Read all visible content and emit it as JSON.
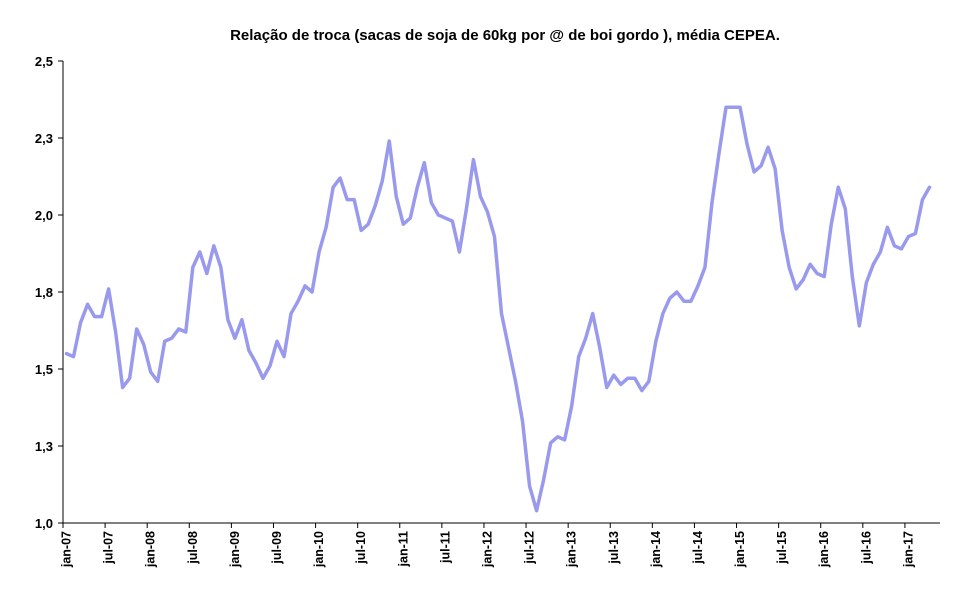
{
  "chart_data": {
    "type": "line",
    "title": "Relação de troca (sacas de soja de 60kg por @ de boi gordo ), média CEPEA.",
    "xlabel": "",
    "ylabel": "",
    "ylim": [
      1.0,
      2.5
    ],
    "y_ticks": [
      "1,0",
      "1,3",
      "1,5",
      "1,8",
      "2,0",
      "2,3",
      "2,5"
    ],
    "y_tick_values": [
      1.0,
      1.25,
      1.5,
      1.75,
      2.0,
      2.25,
      2.5
    ],
    "x_tick_labels": [
      "jan-07",
      "jul-07",
      "jan-08",
      "jul-08",
      "jan-09",
      "jul-09",
      "jan-10",
      "jul-10",
      "jan-11",
      "jul-11",
      "jan-12",
      "jul-12",
      "jan-13",
      "jul-13",
      "jan-14",
      "jul-14",
      "jan-15",
      "jul-15",
      "jan-16",
      "jul-16",
      "jan-17"
    ],
    "grid": false,
    "legend": "none",
    "line_color": "#9999ee",
    "x_start": "jan-07",
    "x_frequency": "monthly",
    "values": [
      1.55,
      1.54,
      1.65,
      1.71,
      1.67,
      1.67,
      1.76,
      1.62,
      1.44,
      1.47,
      1.63,
      1.58,
      1.49,
      1.46,
      1.59,
      1.6,
      1.63,
      1.62,
      1.83,
      1.88,
      1.81,
      1.9,
      1.83,
      1.66,
      1.6,
      1.66,
      1.56,
      1.52,
      1.47,
      1.51,
      1.59,
      1.54,
      1.68,
      1.72,
      1.77,
      1.75,
      1.88,
      1.96,
      2.09,
      2.12,
      2.05,
      2.05,
      1.95,
      1.97,
      2.03,
      2.11,
      2.24,
      2.06,
      1.97,
      1.99,
      2.09,
      2.17,
      2.04,
      2.0,
      1.99,
      1.98,
      1.88,
      2.02,
      2.18,
      2.06,
      2.01,
      1.93,
      1.68,
      1.57,
      1.46,
      1.33,
      1.12,
      1.04,
      1.14,
      1.26,
      1.28,
      1.27,
      1.38,
      1.54,
      1.6,
      1.68,
      1.57,
      1.44,
      1.48,
      1.45,
      1.47,
      1.47,
      1.43,
      1.46,
      1.59,
      1.68,
      1.73,
      1.75,
      1.72,
      1.72,
      1.77,
      1.83,
      2.04,
      2.2,
      2.35,
      2.35,
      2.35,
      2.23,
      2.14,
      2.16,
      2.22,
      2.15,
      1.95,
      1.83,
      1.76,
      1.79,
      1.84,
      1.81,
      1.8,
      1.97,
      2.09,
      2.02,
      1.8,
      1.64,
      1.78,
      1.84,
      1.88,
      1.96,
      1.9,
      1.89,
      1.93,
      1.94,
      2.05,
      2.09
    ]
  }
}
